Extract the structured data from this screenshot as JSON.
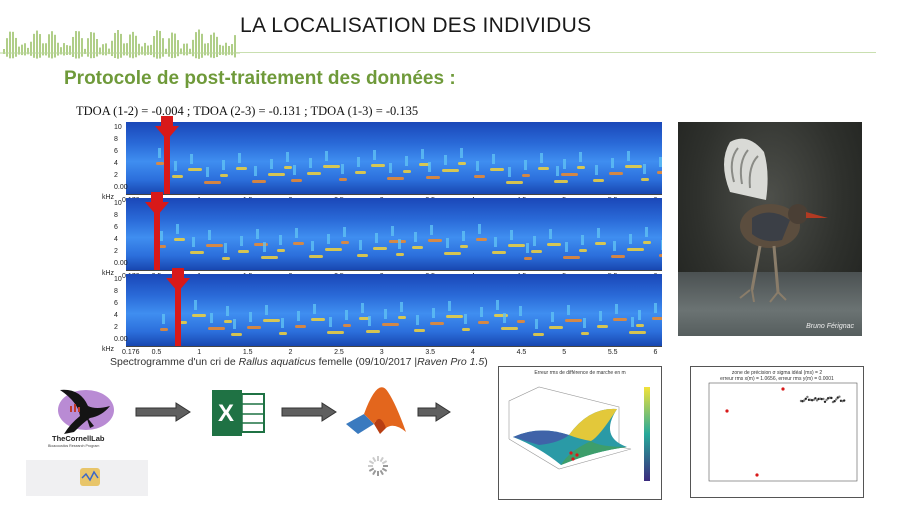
{
  "slide": {
    "title": "LA LOCALISATION DES INDIVIDUS",
    "subtitle": "Protocole de post-traitement des données :",
    "tdoa_line": "TDOA (1-2) = -0.004 ; TDOA (2-3) = -0.131 ; TDOA (1-3) = -0.135"
  },
  "spectrograms": {
    "y_ticks": [
      "10",
      "8",
      "6",
      "4",
      "2",
      "0.00"
    ],
    "y_unit": "kHz",
    "x_ticks": [
      "0.176",
      "0.5",
      "1",
      "1.5",
      "2",
      "2.5",
      "3",
      "3.5",
      "4",
      "4.5",
      "5",
      "5.5",
      "6"
    ],
    "marker_times": [
      0.62,
      0.52,
      0.75
    ]
  },
  "caption": {
    "prefix": "Spectrogramme d'un cri de ",
    "species": "Rallus aquaticus",
    "middle": " femelle (09/10/2017 |",
    "software": "Raven Pro 1.5",
    "suffix": ")"
  },
  "photo": {
    "credit": "Bruno Férignac"
  },
  "workflow": {
    "cornell_logo_text": "TheCornellLab",
    "cornell_logo_subtext": "Bioacoustics Research Program",
    "excel_letter": "X"
  },
  "plot3d": {
    "title": "Erreur rms de différence de marche en m"
  },
  "plotsc": {
    "title": "zone de précision σ sigma idéal (ms) = 2",
    "subtitle": "erreur rms x(m) = 1.0656, erreur rms y(m) = 0.0001"
  },
  "colors": {
    "accent_green": "#6f9a3a",
    "marker_red": "#d81919",
    "excel_green": "#1f7244",
    "matlab_orange": "#e3661d"
  }
}
